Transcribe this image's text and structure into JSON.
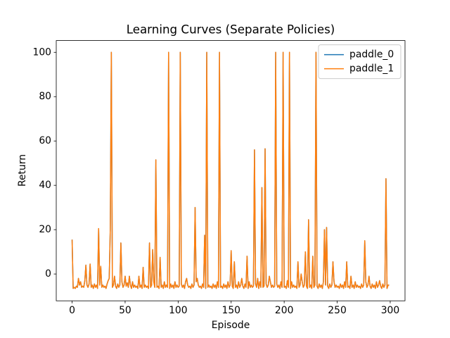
{
  "chart_data": {
    "type": "line",
    "title": "Learning Curves (Separate Policies)",
    "x_label": "Episode",
    "y_label": "Return",
    "x": [
      0,
      1,
      2,
      3,
      4,
      5,
      6,
      7,
      8,
      9,
      10,
      11,
      12,
      13,
      14,
      15,
      16,
      17,
      18,
      19,
      20,
      21,
      22,
      23,
      24,
      25,
      26,
      27,
      28,
      29,
      30,
      31,
      32,
      33,
      34,
      35,
      36,
      37,
      38,
      39,
      40,
      41,
      42,
      43,
      44,
      45,
      46,
      47,
      48,
      49,
      50,
      51,
      52,
      53,
      54,
      55,
      56,
      57,
      58,
      59,
      60,
      61,
      62,
      63,
      64,
      65,
      66,
      67,
      68,
      69,
      70,
      71,
      72,
      73,
      74,
      75,
      76,
      77,
      78,
      79,
      80,
      81,
      82,
      83,
      84,
      85,
      86,
      87,
      88,
      89,
      90,
      91,
      92,
      93,
      94,
      95,
      96,
      97,
      98,
      99,
      100,
      101,
      102,
      103,
      104,
      105,
      106,
      107,
      108,
      109,
      110,
      111,
      112,
      113,
      114,
      115,
      116,
      117,
      118,
      119,
      120,
      121,
      122,
      123,
      124,
      125,
      126,
      127,
      128,
      129,
      130,
      131,
      132,
      133,
      134,
      135,
      136,
      137,
      138,
      139,
      140,
      141,
      142,
      143,
      144,
      145,
      146,
      147,
      148,
      149,
      150,
      151,
      152,
      153,
      154,
      155,
      156,
      157,
      158,
      159,
      160,
      161,
      162,
      163,
      164,
      165,
      166,
      167,
      168,
      169,
      170,
      171,
      172,
      173,
      174,
      175,
      176,
      177,
      178,
      179,
      180,
      181,
      182,
      183,
      184,
      185,
      186,
      187,
      188,
      189,
      190,
      191,
      192,
      193,
      194,
      195,
      196,
      197,
      198,
      199,
      200,
      201,
      202,
      203,
      204,
      205,
      206,
      207,
      208,
      209,
      210,
      211,
      212,
      213,
      214,
      215,
      216,
      217,
      218,
      219,
      220,
      221,
      222,
      223,
      224,
      225,
      226,
      227,
      228,
      229,
      230,
      231,
      232,
      233,
      234,
      235,
      236,
      237,
      238,
      239,
      240,
      241,
      242,
      243,
      244,
      245,
      246,
      247,
      248,
      249,
      250,
      251,
      252,
      253,
      254,
      255,
      256,
      257,
      258,
      259,
      260,
      261,
      262,
      263,
      264,
      265,
      266,
      267,
      268,
      269,
      270,
      271,
      272,
      273,
      274,
      275,
      276,
      277,
      278,
      279,
      280,
      281,
      282,
      283,
      284,
      285,
      286,
      287,
      288,
      289,
      290,
      291,
      292,
      293,
      294,
      295,
      296,
      297,
      298,
      299
    ],
    "series": [
      {
        "name": "paddle_0",
        "color": "#1f77b4",
        "values": [
          15.5,
          -6.5,
          -6,
          -6.5,
          -5.5,
          -6,
          -2,
          -5,
          -3.5,
          -6,
          -5.5,
          -6,
          -3,
          4,
          -5,
          -6,
          -4.5,
          4.5,
          -6,
          -5,
          -6.5,
          -4.5,
          -6,
          -5,
          -6.5,
          20.5,
          -5,
          3.5,
          -6,
          -5,
          -6,
          -5.5,
          -6.5,
          -4.5,
          -3,
          -2,
          20,
          100,
          -6,
          -5,
          -1,
          -5.5,
          -6.5,
          -4.5,
          -6,
          -5,
          14,
          -3.5,
          -6,
          -5,
          -1,
          -5.5,
          -4,
          -6,
          -1,
          -5,
          -6.5,
          -3.5,
          -6,
          -5,
          -6,
          -5.5,
          -6.5,
          -1,
          -6,
          -5,
          -6.5,
          3,
          -6,
          -5,
          -6,
          -5.5,
          -6.5,
          14,
          -6,
          -5,
          11,
          -3.5,
          -6,
          51.5,
          -6,
          -5.5,
          -6.5,
          7.5,
          -6,
          -5,
          -6.5,
          -3.5,
          -6,
          -5,
          -6,
          100,
          -6.5,
          -4.5,
          -6,
          -5,
          -6.5,
          -3.5,
          -6,
          -5,
          -6,
          -5.5,
          100,
          -4.5,
          -6,
          -5,
          -6.5,
          -3.5,
          -2,
          -5,
          -6,
          -5.5,
          -6.5,
          -4.5,
          -6,
          -5,
          30,
          -3.5,
          -2,
          -5,
          -6,
          -5.5,
          -6.5,
          -4.5,
          -6,
          17.5,
          -6.5,
          100,
          -6,
          -5,
          -6,
          -5.5,
          -6.5,
          -4.5,
          -6,
          -5,
          -6.5,
          -3.5,
          -6,
          100,
          -6,
          -5.5,
          -6.5,
          -4.5,
          -6,
          -5,
          -6.5,
          -3.5,
          -6,
          -5,
          10.5,
          -5.5,
          -6.5,
          5.5,
          -6,
          -5,
          -6.5,
          -3.5,
          -6,
          -5,
          -2,
          -5.5,
          -6.5,
          -4.5,
          -6,
          8,
          -6.5,
          -3.5,
          -6,
          -5,
          -6,
          -5.5,
          56,
          -4.5,
          -6,
          -2,
          -6.5,
          -3.5,
          -6,
          39,
          -6,
          -5.5,
          56.5,
          -4.5,
          -6,
          -5,
          -1,
          -3.5,
          -6,
          -5,
          -6,
          -5.5,
          100,
          -4.5,
          -6,
          -5,
          -6.5,
          -3.5,
          -6,
          100,
          -6,
          -5.5,
          -6.5,
          -3,
          -6,
          100,
          -6.5,
          -3.5,
          -6,
          -5,
          -6,
          -5.5,
          -6.5,
          5.5,
          -6,
          -5,
          0,
          -3.5,
          -6,
          -5,
          10,
          -5.5,
          -6.5,
          24.5,
          -6,
          -5,
          -6.5,
          8,
          -6,
          -5,
          100,
          -5.5,
          -6.5,
          -4.5,
          -6,
          -5,
          -6.5,
          -3.5,
          20,
          -5,
          21,
          -5.5,
          -6.5,
          -4.5,
          -6,
          -5,
          5.5,
          -3.5,
          -6,
          -5,
          -6,
          -5.5,
          -6.5,
          -4.5,
          -6,
          -5,
          -6.5,
          -3.5,
          -6,
          5.5,
          -6,
          -5.5,
          -6.5,
          -1,
          -6,
          -5,
          -6.5,
          -3.5,
          -6,
          -5,
          -6,
          -5.5,
          -6.5,
          -4.5,
          -6,
          -5,
          15,
          -3.5,
          -6,
          -5,
          -1,
          -5.5,
          -6.5,
          -4.5,
          -6,
          -5,
          -6.5,
          -3.5,
          -6,
          -5,
          -3,
          -5.5,
          -6.5,
          -4.5,
          -6,
          -5,
          43,
          -6.5,
          -5,
          -5
        ]
      },
      {
        "name": "paddle_1",
        "color": "#ff7f0e",
        "values": [
          15.5,
          -6.5,
          -6,
          -6.5,
          -5.5,
          -6,
          -2,
          -5,
          -3.5,
          -6,
          -5.5,
          -6,
          -3,
          4,
          -5,
          -6,
          -4.5,
          4.5,
          -6,
          -5,
          -6.5,
          -4.5,
          -6,
          -5,
          -6.5,
          20.5,
          -5,
          3.5,
          -6,
          -5,
          -6,
          -5.5,
          -6.5,
          -4.5,
          -3,
          -2,
          20,
          100,
          -6,
          -5,
          -1,
          -5.5,
          -6.5,
          -4.5,
          -6,
          -5,
          14,
          -3.5,
          -6,
          -5,
          -1,
          -5.5,
          -4,
          -6,
          -1,
          -5,
          -6.5,
          -3.5,
          -6,
          -5,
          -6,
          -5.5,
          -6.5,
          -1,
          -6,
          -5,
          -6.5,
          3,
          -6,
          -5,
          -6,
          -5.5,
          -6.5,
          14,
          -6,
          -5,
          11,
          -3.5,
          -6,
          51.5,
          -6,
          -5.5,
          -6.5,
          7.5,
          -6,
          -5,
          -6.5,
          -3.5,
          -6,
          -5,
          -6,
          100,
          -6.5,
          -4.5,
          -6,
          -5,
          -6.5,
          -3.5,
          -6,
          -5,
          -6,
          -5.5,
          100,
          -4.5,
          -6,
          -5,
          -6.5,
          -3.5,
          -2,
          -5,
          -6,
          -5.5,
          -6.5,
          -4.5,
          -6,
          -5,
          30,
          -3.5,
          -2,
          -5,
          -6,
          -5.5,
          -6.5,
          -4.5,
          -6,
          17.5,
          -6.5,
          100,
          -6,
          -5,
          -6,
          -5.5,
          -6.5,
          -4.5,
          -6,
          -5,
          -6.5,
          -3.5,
          -6,
          100,
          -6,
          -5.5,
          -6.5,
          -4.5,
          -6,
          -5,
          -6.5,
          -3.5,
          -6,
          -5,
          10.5,
          -5.5,
          -6.5,
          5.5,
          -6,
          -5,
          -6.5,
          -3.5,
          -6,
          -5,
          -2,
          -5.5,
          -6.5,
          -4.5,
          -6,
          8,
          -6.5,
          -3.5,
          -6,
          -5,
          -6,
          -5.5,
          56,
          -4.5,
          -6,
          -2,
          -6.5,
          -3.5,
          -6,
          39,
          -6,
          -5.5,
          56.5,
          -4.5,
          -6,
          -5,
          -1,
          -3.5,
          -6,
          -5,
          -6,
          -5.5,
          100,
          -4.5,
          -6,
          -5,
          -6.5,
          -3.5,
          -6,
          100,
          -6,
          -5.5,
          -6.5,
          -3,
          -6,
          100,
          -6.5,
          -3.5,
          -6,
          -5,
          -6,
          -5.5,
          -6.5,
          5.5,
          -6,
          -5,
          0,
          -3.5,
          -6,
          -5,
          10,
          -5.5,
          -6.5,
          24.5,
          -6,
          -5,
          -6.5,
          8,
          -6,
          -5,
          100,
          -5.5,
          -6.5,
          -4.5,
          -6,
          -5,
          -6.5,
          -3.5,
          20,
          -5,
          21,
          -5.5,
          -6.5,
          -4.5,
          -6,
          -5,
          5.5,
          -3.5,
          -6,
          -5,
          -6,
          -5.5,
          -6.5,
          -4.5,
          -6,
          -5,
          -6.5,
          -3.5,
          -6,
          5.5,
          -6,
          -5.5,
          -6.5,
          -1,
          -6,
          -5,
          -6.5,
          -3.5,
          -6,
          -5,
          -6,
          -5.5,
          -6.5,
          -4.5,
          -6,
          -5,
          15,
          -3.5,
          -6,
          -5,
          -1,
          -5.5,
          -6.5,
          -4.5,
          -6,
          -5,
          -6.5,
          -3.5,
          -6,
          -5,
          -3,
          -5.5,
          -6.5,
          -4.5,
          -6,
          -5,
          43,
          -6.5,
          -5,
          -5
        ]
      }
    ],
    "xlim": [
      -14.95,
      313.95
    ],
    "xticks": [
      0,
      50,
      100,
      150,
      200,
      250,
      300
    ],
    "ylim": [
      -12.1,
      105.3
    ],
    "yticks": [
      0,
      20,
      40,
      60,
      80,
      100
    ],
    "grid": false,
    "legend": "upper right"
  }
}
